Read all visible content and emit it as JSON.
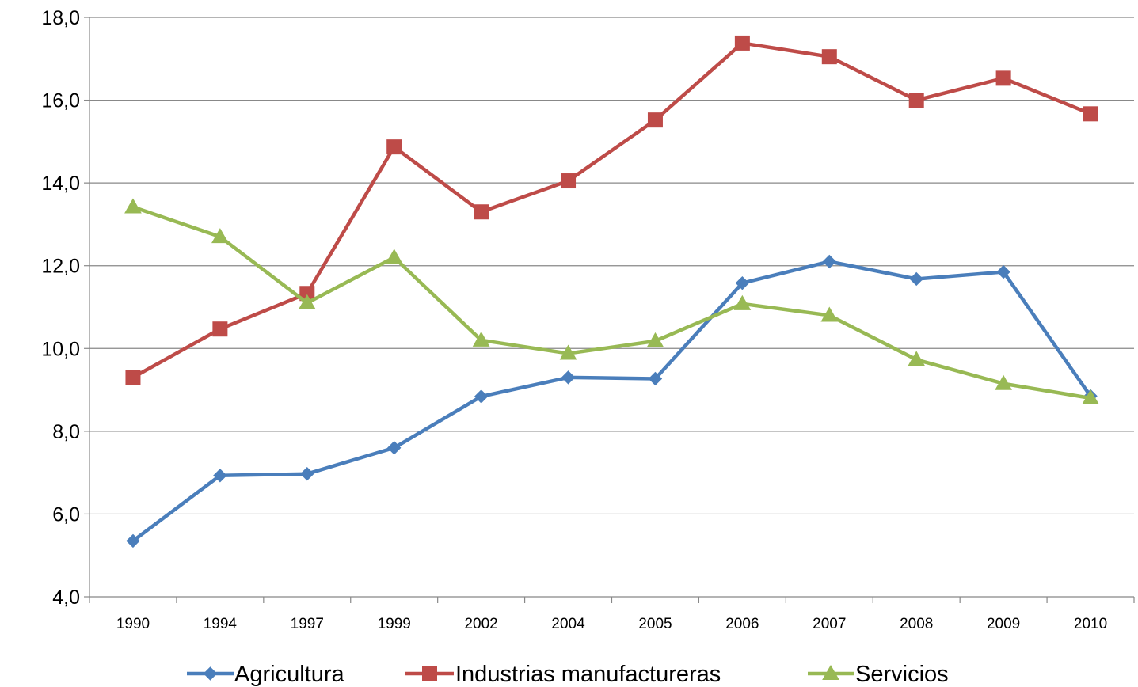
{
  "chart_data": {
    "type": "line",
    "title": "",
    "xlabel": "",
    "ylabel": "",
    "categories": [
      "1990",
      "1994",
      "1997",
      "1999",
      "2002",
      "2004",
      "2005",
      "2006",
      "2007",
      "2008",
      "2009",
      "2010"
    ],
    "ylim": [
      4.0,
      18.0
    ],
    "yticks": [
      "4,0",
      "6,0",
      "8,0",
      "10,0",
      "12,0",
      "14,0",
      "16,0",
      "18,0"
    ],
    "grid": true,
    "legend_position": "bottom",
    "series": [
      {
        "name": "Agricultura",
        "color": "#4A7EBB",
        "marker": "diamond",
        "values": [
          5.35,
          6.93,
          6.97,
          7.6,
          8.84,
          9.3,
          9.27,
          11.58,
          12.1,
          11.68,
          11.85,
          8.85
        ]
      },
      {
        "name": "Industrias manufactureras",
        "color": "#BE4B48",
        "marker": "square",
        "values": [
          9.3,
          10.47,
          11.33,
          14.87,
          13.3,
          14.05,
          15.52,
          17.38,
          17.05,
          16.0,
          16.53,
          15.67
        ]
      },
      {
        "name": "Servicios",
        "color": "#98B954",
        "marker": "triangle",
        "values": [
          13.42,
          12.7,
          11.1,
          12.2,
          10.2,
          9.88,
          10.18,
          11.08,
          10.8,
          9.73,
          9.15,
          8.8
        ]
      }
    ]
  }
}
